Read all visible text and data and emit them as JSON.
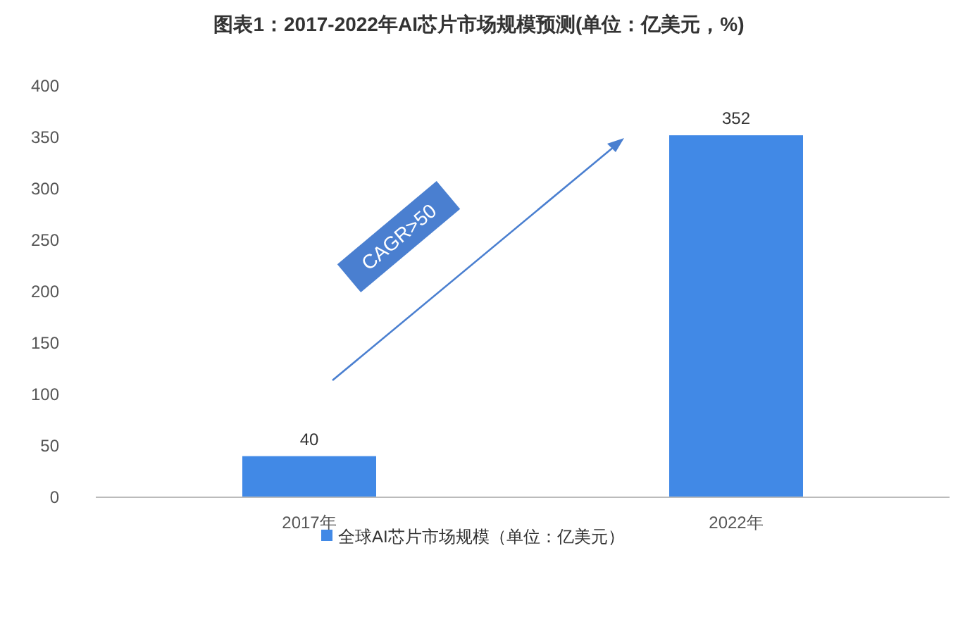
{
  "chart_data": {
    "type": "bar",
    "title": "图表1：2017-2022年AI芯片市场规模预测(单位：亿美元，%)",
    "categories": [
      "2017年",
      "2022年"
    ],
    "series": [
      {
        "name": "全球AI芯片市场规模（单位：亿美元）",
        "color": "#4189e6",
        "values": [
          40,
          352
        ]
      }
    ],
    "ylim": [
      0,
      400
    ],
    "yticks": [
      0,
      50,
      100,
      150,
      200,
      250,
      300,
      350,
      400
    ],
    "data_labels": true,
    "legend": "bottom",
    "grid": false,
    "annotations": [
      "CAGR>50"
    ]
  }
}
